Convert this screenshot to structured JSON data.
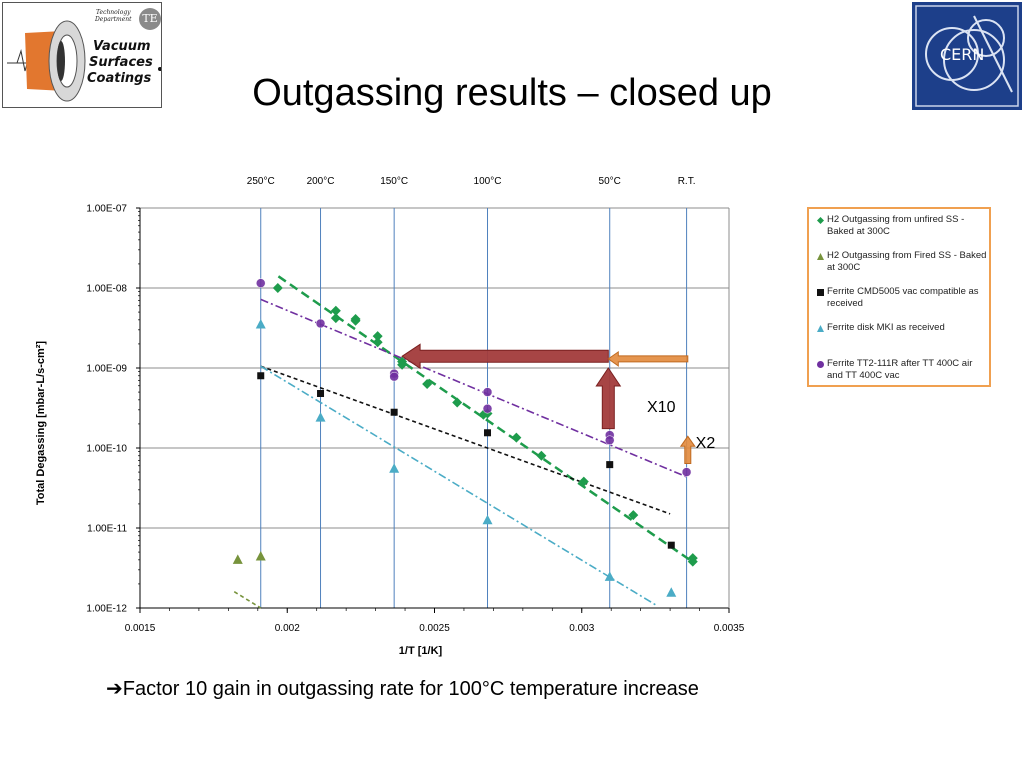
{
  "title": "Outgassing results – closed up",
  "logo_left": {
    "dept_line1": "Technology",
    "dept_line2": "Department",
    "badge": "TE",
    "line1": "Vacuum",
    "line2": "Surfaces",
    "line3": "Coatings"
  },
  "logo_right": {
    "text": "CERN"
  },
  "footnote": {
    "arrow": "➔",
    "text": "Factor 10 gain in outgassing rate for 100°C temperature increase"
  },
  "colors": {
    "green": "#1e9c4c",
    "olive": "#77933c",
    "black": "#111111",
    "teal": "#4bacc6",
    "purple": "#7030a0",
    "vline": "#4f81bd",
    "red_arrow": "#a23b3b",
    "orange_arrow": "#e28a3c"
  },
  "chart_data": {
    "type": "scatter",
    "xlabel": "1/T  [1/K]",
    "ylabel": "Total Degassing [mbar-L/s-cm²]",
    "xlim": [
      0.0015,
      0.0035
    ],
    "ylim": [
      1e-12,
      1e-07
    ],
    "yscale": "log",
    "grid": "horizontal",
    "legend_position": "right",
    "xticks": [
      {
        "value": 0.0015,
        "label": "0.0015"
      },
      {
        "value": 0.002,
        "label": "0.002"
      },
      {
        "value": 0.0025,
        "label": "0.0025"
      },
      {
        "value": 0.003,
        "label": "0.003"
      },
      {
        "value": 0.0035,
        "label": "0.0035"
      }
    ],
    "yticks": [
      {
        "value": 1e-07,
        "label": "1.00E-07"
      },
      {
        "value": 1e-08,
        "label": "1.00E-08"
      },
      {
        "value": 1e-09,
        "label": "1.00E-09"
      },
      {
        "value": 1e-10,
        "label": "1.00E-10"
      },
      {
        "value": 1e-11,
        "label": "1.00E-11"
      },
      {
        "value": 1e-12,
        "label": "1.00E-12"
      }
    ],
    "temperature_lines": [
      {
        "label": "250°C",
        "x": 0.00191
      },
      {
        "label": "200°C",
        "x": 0.002113
      },
      {
        "label": "150°C",
        "x": 0.002363
      },
      {
        "label": "100°C",
        "x": 0.00268
      },
      {
        "label": "50°C",
        "x": 0.003095
      },
      {
        "label": "R.T.",
        "x": 0.003356
      }
    ],
    "series": [
      {
        "name": "H2 Outgassing from unfired SS - Baked at 300C",
        "marker": "diamond",
        "color": "#1e9c4c",
        "points": [
          [
            0.001968,
            1e-08
          ],
          [
            0.002165,
            5.2e-09
          ],
          [
            0.002165,
            4.2e-09
          ],
          [
            0.002232,
            3.9e-09
          ],
          [
            0.002232,
            4.1e-09
          ],
          [
            0.002307,
            2.5e-09
          ],
          [
            0.002307,
            2.1e-09
          ],
          [
            0.00239,
            1.2e-09
          ],
          [
            0.00239,
            1.1e-09
          ],
          [
            0.002475,
            6.3e-10
          ],
          [
            0.002577,
            3.7e-10
          ],
          [
            0.002666,
            2.6e-10
          ],
          [
            0.00268,
            2.7e-10
          ],
          [
            0.002778,
            1.35e-10
          ],
          [
            0.002863,
            8e-11
          ],
          [
            0.003007,
            3.8e-11
          ],
          [
            0.003175,
            1.45e-11
          ],
          [
            0.003377,
            4.2e-12
          ],
          [
            0.003377,
            3.8e-12
          ]
        ]
      },
      {
        "name": "H2 Outgassing from Fired SS - Baked at 300C",
        "marker": "triangle",
        "color": "#77933c",
        "points": [
          [
            0.001832,
            4e-12
          ],
          [
            0.00191,
            4.4e-12
          ]
        ]
      },
      {
        "name": "Ferrite CMD5005 vac compatible as received",
        "marker": "square",
        "color": "#111111",
        "points": [
          [
            0.00191,
            8e-10
          ],
          [
            0.002113,
            4.8e-10
          ],
          [
            0.002363,
            2.8e-10
          ],
          [
            0.00268,
            1.55e-10
          ],
          [
            0.003095,
            6.2e-11
          ],
          [
            0.003304,
            6.1e-12
          ]
        ]
      },
      {
        "name": "Ferrite disk MKI as received",
        "marker": "triangle",
        "color": "#4bacc6",
        "points": [
          [
            0.00191,
            3.5e-09
          ],
          [
            0.002113,
            2.4e-10
          ],
          [
            0.002363,
            5.5e-11
          ],
          [
            0.00268,
            1.25e-11
          ],
          [
            0.003095,
            2.45e-12
          ],
          [
            0.003304,
            1.55e-12
          ]
        ]
      },
      {
        "name": "Ferrite TT2-111R after TT 400C air and TT 400C vac",
        "marker": "circle",
        "color": "#7030a0",
        "points": [
          [
            0.00191,
            1.15e-08
          ],
          [
            0.002113,
            3.6e-09
          ],
          [
            0.002363,
            8.5e-10
          ],
          [
            0.002363,
            7.8e-10
          ],
          [
            0.00268,
            5e-10
          ],
          [
            0.00268,
            3.1e-10
          ],
          [
            0.003095,
            1.45e-10
          ],
          [
            0.003095,
            1.25e-10
          ],
          [
            0.003356,
            5e-11
          ]
        ]
      }
    ],
    "fit_lines": [
      {
        "color": "#1e9c4c",
        "style": "dash",
        "points": [
          [
            0.00197,
            1.4e-08
          ],
          [
            0.00338,
            3.7e-12
          ]
        ]
      },
      {
        "color": "#77933c",
        "style": "dash",
        "points": [
          [
            0.00182,
            1.6e-12
          ],
          [
            0.00191,
            1e-12
          ]
        ]
      },
      {
        "color": "#111111",
        "style": "dash",
        "points": [
          [
            0.00191,
            1.05e-09
          ],
          [
            0.0033,
            1.5e-11
          ]
        ]
      },
      {
        "color": "#4bacc6",
        "style": "dashdot",
        "points": [
          [
            0.00191,
            1.05e-09
          ],
          [
            0.00325,
            1.1e-12
          ]
        ]
      },
      {
        "color": "#7030a0",
        "style": "dashdot",
        "points": [
          [
            0.00191,
            7.2e-09
          ],
          [
            0.00336,
            4.3e-11
          ]
        ]
      }
    ],
    "annotations": [
      {
        "type": "arrow",
        "color": "#a23b3b",
        "from": [
          0.00309,
          1.4e-09
        ],
        "to": [
          0.00239,
          1.4e-09
        ]
      },
      {
        "type": "arrow",
        "color": "#e28a3c",
        "from": [
          0.00336,
          1.3e-09
        ],
        "to": [
          0.00309,
          1.3e-09
        ]
      },
      {
        "type": "arrow",
        "color": "#a23b3b",
        "from": [
          0.00309,
          1.75e-10
        ],
        "to": [
          0.00309,
          1e-09
        ]
      },
      {
        "type": "arrow",
        "color": "#e28a3c",
        "from": [
          0.00336,
          6.4e-11
        ],
        "to": [
          0.00336,
          1.4e-10
        ]
      },
      {
        "type": "text",
        "text": "X10",
        "at": [
          0.00327,
          2.8e-10
        ]
      },
      {
        "type": "text",
        "text": "X2",
        "at": [
          0.00342,
          1e-10
        ]
      }
    ]
  }
}
